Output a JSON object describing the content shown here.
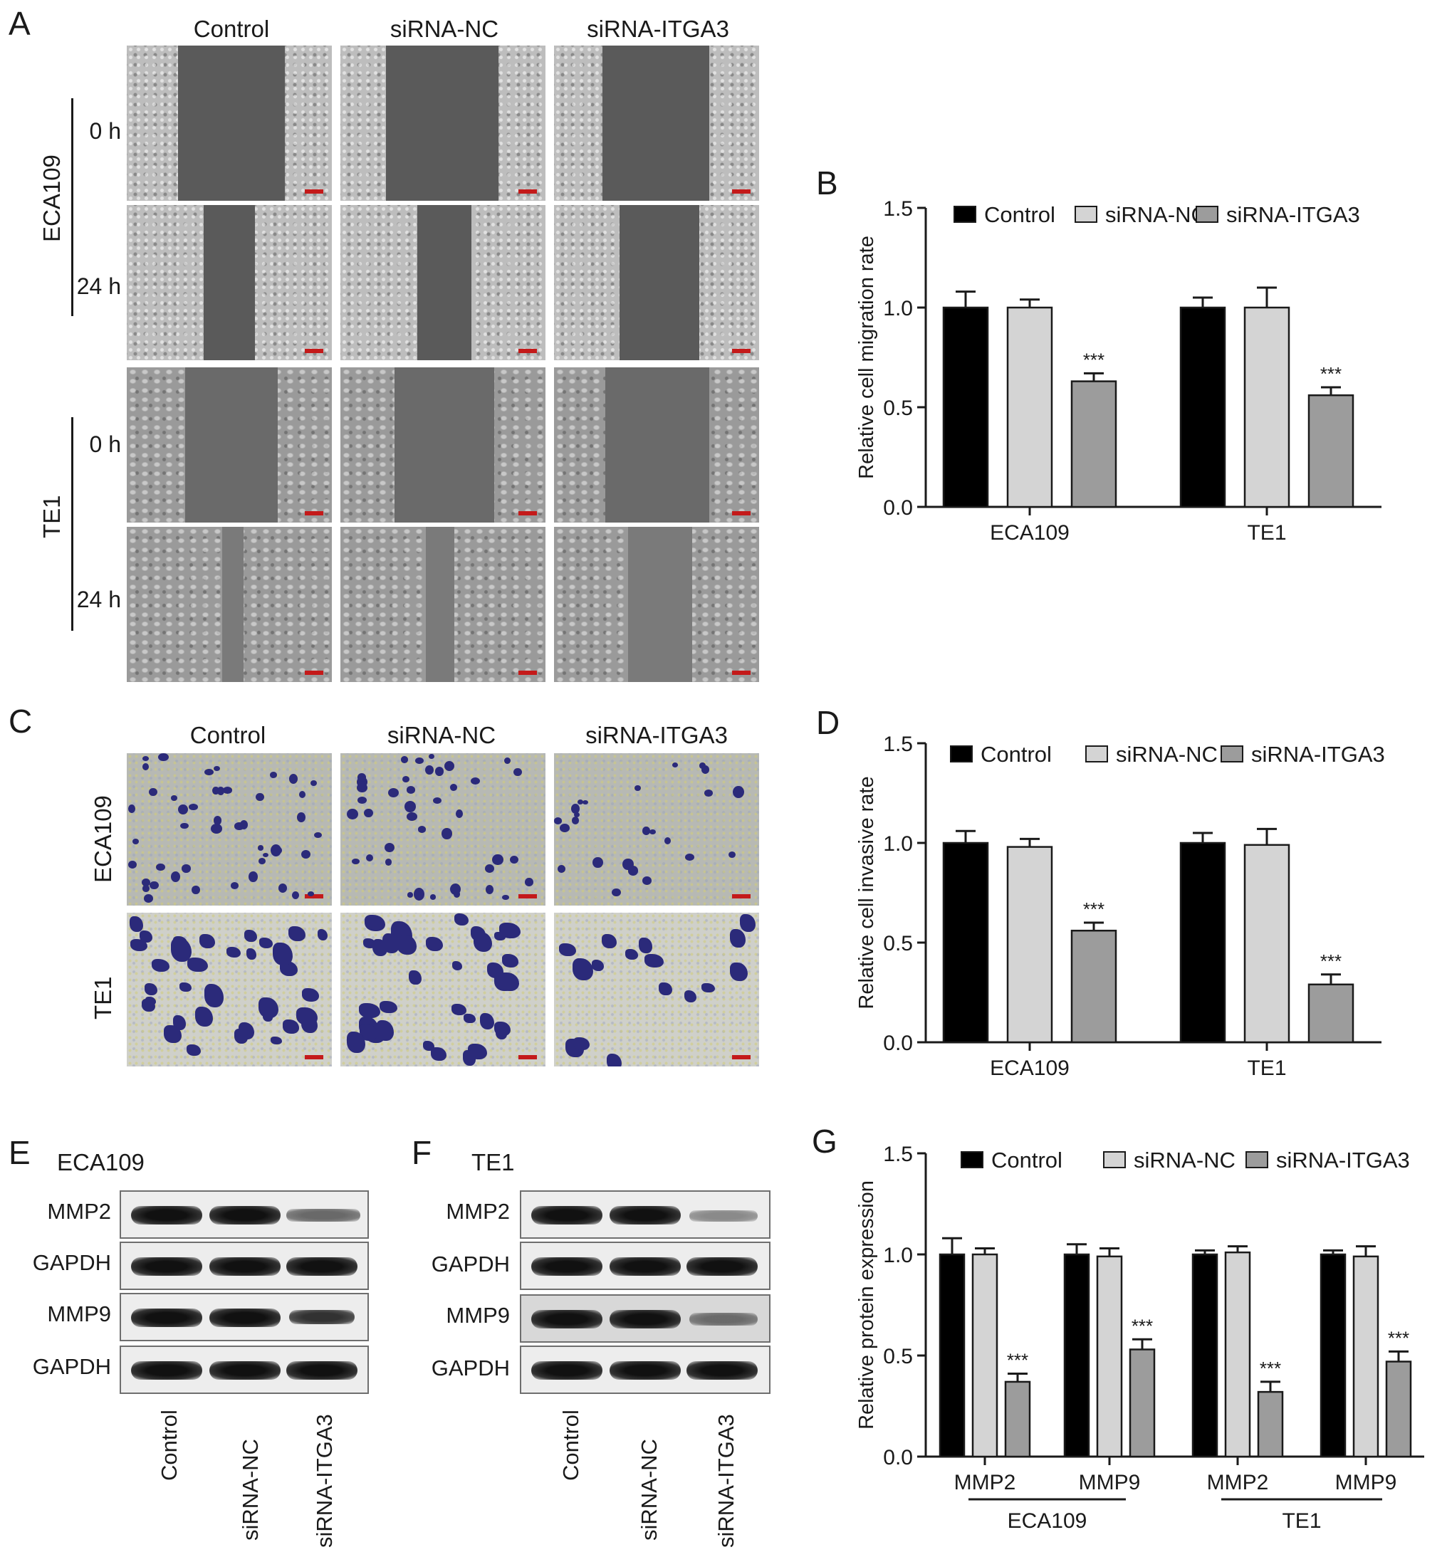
{
  "panel_labels": {
    "A": "A",
    "B": "B",
    "C": "C",
    "D": "D",
    "E": "E",
    "F": "F",
    "G": "G"
  },
  "panel_a": {
    "columns": [
      "Control",
      "siRNA-NC",
      "siRNA-ITGA3"
    ],
    "cell_lines": [
      "ECA109",
      "TE1"
    ],
    "timepoints": [
      "0 h",
      "24 h"
    ]
  },
  "panel_c": {
    "columns": [
      "Control",
      "siRNA-NC",
      "siRNA-ITGA3"
    ],
    "cell_lines": [
      "ECA109",
      "TE1"
    ]
  },
  "panel_e": {
    "title": "ECA109",
    "rows": [
      "MMP2",
      "GAPDH",
      "MMP9",
      "GAPDH"
    ],
    "lanes": [
      "Control",
      "siRNA-NC",
      "siRNA-ITGA3"
    ]
  },
  "panel_f": {
    "title": "TE1",
    "rows": [
      "MMP2",
      "GAPDH",
      "MMP9",
      "GAPDH"
    ],
    "lanes": [
      "Control",
      "siRNA-NC",
      "siRNA-ITGA3"
    ]
  },
  "colors": {
    "control": "#000000",
    "nc": "#d4d4d4",
    "itga3": "#9c9c9c"
  },
  "chart_data": [
    {
      "panel": "B",
      "type": "bar",
      "ylabel": "Relative cell migration rate",
      "ylim": [
        0,
        1.5
      ],
      "yticks": [
        "0.0",
        "0.5",
        "1.0",
        "1.5"
      ],
      "categories": [
        "ECA109",
        "TE1"
      ],
      "series": [
        {
          "name": "Control",
          "values": [
            1.0,
            1.0
          ],
          "errors": [
            0.08,
            0.05
          ]
        },
        {
          "name": "siRNA-NC",
          "values": [
            1.0,
            1.0
          ],
          "errors": [
            0.04,
            0.1
          ]
        },
        {
          "name": "siRNA-ITGA3",
          "values": [
            0.63,
            0.56
          ],
          "errors": [
            0.04,
            0.04
          ]
        }
      ],
      "significance": [
        "***",
        "***"
      ],
      "legend": "top"
    },
    {
      "panel": "D",
      "type": "bar",
      "ylabel": "Relative cell invasive rate",
      "ylim": [
        0,
        1.5
      ],
      "yticks": [
        "0.0",
        "0.5",
        "1.0",
        "1.5"
      ],
      "categories": [
        "ECA109",
        "TE1"
      ],
      "series": [
        {
          "name": "Control",
          "values": [
            1.0,
            1.0
          ],
          "errors": [
            0.06,
            0.05
          ]
        },
        {
          "name": "siRNA-NC",
          "values": [
            0.98,
            0.99
          ],
          "errors": [
            0.04,
            0.08
          ]
        },
        {
          "name": "siRNA-ITGA3",
          "values": [
            0.56,
            0.29
          ],
          "errors": [
            0.04,
            0.05
          ]
        }
      ],
      "significance": [
        "***",
        "***"
      ],
      "legend": "top"
    },
    {
      "panel": "G",
      "type": "bar",
      "ylabel": "Relative protein expression",
      "ylim": [
        0,
        1.5
      ],
      "yticks": [
        "0.0",
        "0.5",
        "1.0",
        "1.5"
      ],
      "categories": [
        "MMP2",
        "MMP9",
        "MMP2",
        "MMP9"
      ],
      "groups": [
        "ECA109",
        "TE1"
      ],
      "series": [
        {
          "name": "Control",
          "values": [
            1.0,
            1.0,
            1.0,
            1.0
          ],
          "errors": [
            0.08,
            0.05,
            0.02,
            0.02
          ]
        },
        {
          "name": "siRNA-NC",
          "values": [
            1.0,
            0.99,
            1.01,
            0.99
          ],
          "errors": [
            0.03,
            0.04,
            0.03,
            0.05
          ]
        },
        {
          "name": "siRNA-ITGA3",
          "values": [
            0.37,
            0.53,
            0.32,
            0.47
          ],
          "errors": [
            0.04,
            0.05,
            0.05,
            0.05
          ]
        }
      ],
      "significance": [
        "***",
        "***",
        "***",
        "***"
      ],
      "legend": "top"
    }
  ]
}
